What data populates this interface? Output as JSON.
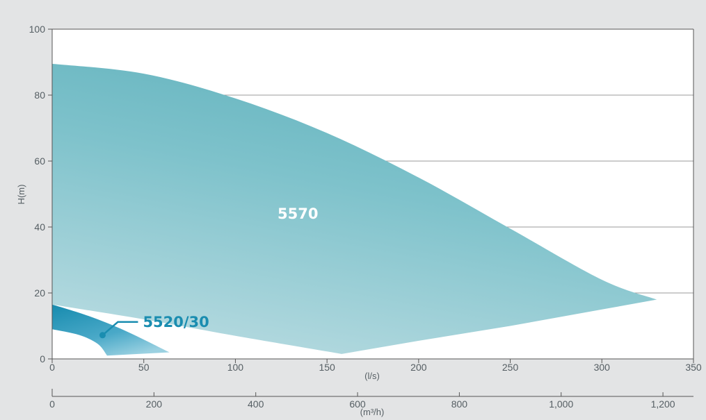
{
  "chart_data": {
    "type": "area",
    "title": "",
    "ylabel": "H(m)",
    "xlabel": "(l/s)",
    "secondary_xlabel": "(m³/h)",
    "xlim": [
      0,
      350
    ],
    "ylim": [
      0,
      100
    ],
    "y_ticks": [
      0,
      20,
      40,
      60,
      80,
      100
    ],
    "x_ticks": [
      0,
      50,
      100,
      150,
      200,
      250,
      300,
      350
    ],
    "secondary_x_ticks": [
      {
        "value": 0,
        "label": "0"
      },
      {
        "value": 200,
        "label": "200"
      },
      {
        "value": 400,
        "label": "400"
      },
      {
        "value": 600,
        "label": "600"
      },
      {
        "value": 800,
        "label": "800"
      },
      {
        "value": 1000,
        "label": "1,000"
      },
      {
        "value": 1200,
        "label": "1,200"
      }
    ],
    "grid": "horizontal",
    "series": [
      {
        "name": "5570",
        "color": "#6bb8c2",
        "upper_curve": [
          [
            0,
            89.5
          ],
          [
            50,
            86.5
          ],
          [
            100,
            79
          ],
          [
            150,
            68.5
          ],
          [
            200,
            55
          ],
          [
            250,
            39.5
          ],
          [
            300,
            24
          ],
          [
            330,
            18
          ]
        ],
        "lower_curve": [
          [
            0,
            16.5
          ],
          [
            50,
            12
          ],
          [
            100,
            7
          ],
          [
            158,
            1.5
          ],
          [
            200,
            5.5
          ],
          [
            250,
            10
          ],
          [
            300,
            15
          ],
          [
            330,
            18
          ]
        ]
      },
      {
        "name": "5520/30",
        "color": "#2196b6",
        "upper_curve": [
          [
            0,
            16.5
          ],
          [
            20,
            13
          ],
          [
            40,
            8.5
          ],
          [
            64,
            2
          ]
        ],
        "lower_curve": [
          [
            0,
            9
          ],
          [
            15,
            7.2
          ],
          [
            25,
            4.5
          ],
          [
            30,
            1
          ]
        ]
      }
    ]
  }
}
